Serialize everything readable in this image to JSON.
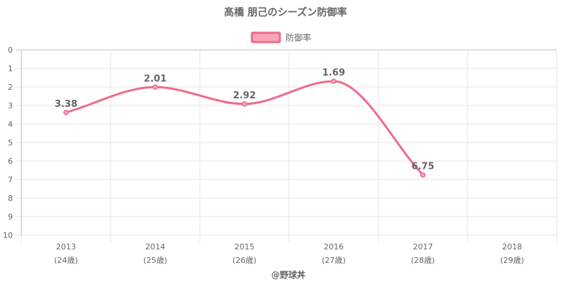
{
  "chart_data": {
    "type": "line",
    "title": "髙橋 朋己のシーズン防御率",
    "categories": [
      "2013",
      "2014",
      "2015",
      "2016",
      "2017",
      "2018"
    ],
    "category_sublabels": [
      "(24歳)",
      "(25歳)",
      "(26歳)",
      "(27歳)",
      "(28歳)",
      "(29歳)"
    ],
    "series": [
      {
        "name": "防御率",
        "values": [
          3.38,
          2.01,
          2.92,
          1.69,
          6.75,
          null
        ],
        "value_labels": [
          "3.38",
          "2.01",
          "2.92",
          "1.69",
          "6.75",
          ""
        ],
        "color": "#f06a8b",
        "fill": "#f7a6b8"
      }
    ],
    "xlabel": "",
    "ylabel": "",
    "ylim": [
      0,
      10
    ],
    "y_ticks": [
      "0",
      "1",
      "2",
      "3",
      "4",
      "5",
      "6",
      "7",
      "8",
      "9",
      "10"
    ],
    "y_reversed": true,
    "grid": true,
    "legend_position": "top",
    "credit": "@野球丼"
  }
}
